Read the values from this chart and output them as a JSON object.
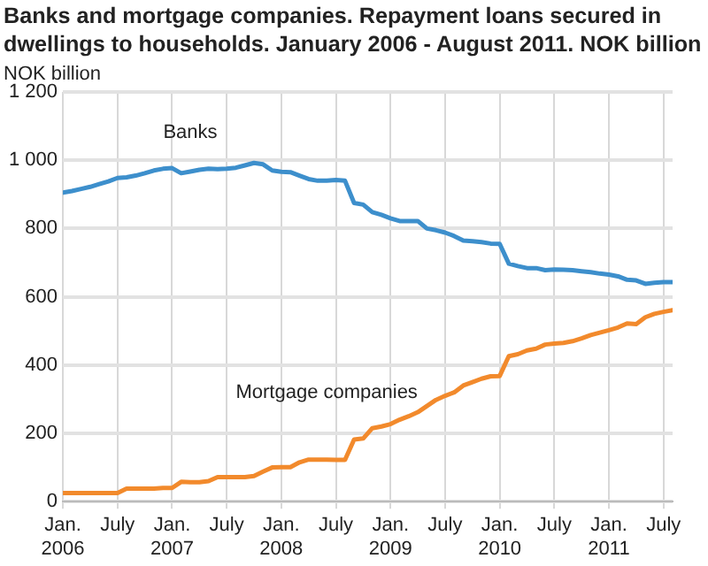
{
  "chart_data": {
    "type": "line",
    "title": "Banks and mortgage companies. Repayment loans secured in dwellings to households. January 2006 - August 2011. NOK billion",
    "ylabel": "NOK billion",
    "x": [
      "2006-01",
      "2006-02",
      "2006-03",
      "2006-04",
      "2006-05",
      "2006-06",
      "2006-07",
      "2006-08",
      "2006-09",
      "2006-10",
      "2006-11",
      "2006-12",
      "2007-01",
      "2007-02",
      "2007-03",
      "2007-04",
      "2007-05",
      "2007-06",
      "2007-07",
      "2007-08",
      "2007-09",
      "2007-10",
      "2007-11",
      "2007-12",
      "2008-01",
      "2008-02",
      "2008-03",
      "2008-04",
      "2008-05",
      "2008-06",
      "2008-07",
      "2008-08",
      "2008-09",
      "2008-10",
      "2008-11",
      "2008-12",
      "2009-01",
      "2009-02",
      "2009-03",
      "2009-04",
      "2009-05",
      "2009-06",
      "2009-07",
      "2009-08",
      "2009-09",
      "2009-10",
      "2009-11",
      "2009-12",
      "2010-01",
      "2010-02",
      "2010-03",
      "2010-04",
      "2010-05",
      "2010-06",
      "2010-07",
      "2010-08",
      "2010-09",
      "2010-10",
      "2010-11",
      "2010-12",
      "2011-01",
      "2011-02",
      "2011-03",
      "2011-04",
      "2011-05",
      "2011-06",
      "2011-07",
      "2011-08"
    ],
    "series": [
      {
        "name": "Banks",
        "color": "#3d8fcc",
        "values": [
          905,
          910,
          916,
          922,
          930,
          938,
          948,
          950,
          955,
          962,
          970,
          975,
          977,
          962,
          967,
          972,
          975,
          974,
          975,
          978,
          985,
          992,
          988,
          970,
          966,
          965,
          955,
          945,
          940,
          940,
          942,
          940,
          875,
          870,
          848,
          840,
          830,
          822,
          822,
          822,
          800,
          795,
          788,
          778,
          765,
          763,
          760,
          756,
          755,
          697,
          690,
          684,
          684,
          678,
          680,
          679,
          678,
          675,
          672,
          668,
          665,
          660,
          650,
          648,
          638,
          641,
          643,
          643
        ]
      },
      {
        "name": "Mortgage companies",
        "color": "#f28a2c",
        "values": [
          25,
          25,
          25,
          25,
          25,
          25,
          25,
          38,
          38,
          38,
          38,
          40,
          40,
          58,
          57,
          57,
          60,
          72,
          72,
          72,
          72,
          75,
          88,
          100,
          101,
          101,
          115,
          123,
          123,
          123,
          122,
          122,
          182,
          185,
          215,
          220,
          227,
          240,
          250,
          262,
          280,
          298,
          310,
          320,
          340,
          350,
          360,
          367,
          368,
          426,
          432,
          443,
          448,
          460,
          463,
          465,
          470,
          478,
          488,
          495,
          502,
          510,
          522,
          520,
          540,
          550,
          556,
          561
        ]
      }
    ],
    "xlim": [
      "2006-01",
      "2011-08"
    ],
    "xticks": [
      {
        "value": "2006-01",
        "label": "Jan. 2006"
      },
      {
        "value": "2006-07",
        "label": "July"
      },
      {
        "value": "2007-01",
        "label": "Jan. 2007"
      },
      {
        "value": "2007-07",
        "label": "July"
      },
      {
        "value": "2008-01",
        "label": "Jan. 2008"
      },
      {
        "value": "2008-07",
        "label": "July"
      },
      {
        "value": "2009-01",
        "label": "Jan. 2009"
      },
      {
        "value": "2009-07",
        "label": "July"
      },
      {
        "value": "2010-01",
        "label": "Jan. 2010"
      },
      {
        "value": "2010-07",
        "label": "July"
      },
      {
        "value": "2011-01",
        "label": "Jan. 2011"
      },
      {
        "value": "2011-07",
        "label": "July"
      }
    ],
    "ylim": [
      0,
      1200
    ],
    "yticks": [
      0,
      200,
      400,
      600,
      800,
      {
        "value": 1000,
        "label": "1 000"
      },
      {
        "value": 1200,
        "label": "1 200"
      }
    ],
    "grid": true,
    "legend": false,
    "marker": "none",
    "line_style": "solid"
  }
}
